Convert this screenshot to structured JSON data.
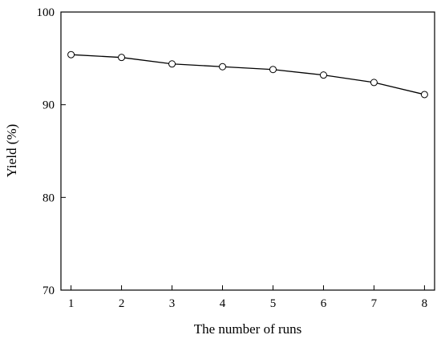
{
  "chart_data": {
    "type": "line",
    "title": "",
    "xlabel": "The number of runs",
    "ylabel": "Yield (%)",
    "xlim": [
      0.8,
      8.2
    ],
    "ylim": [
      70,
      100
    ],
    "x_ticks": [
      1,
      2,
      3,
      4,
      5,
      6,
      7,
      8
    ],
    "y_ticks": [
      70,
      80,
      90,
      100
    ],
    "grid": false,
    "legend": "none",
    "series": [
      {
        "x": [
          1,
          2,
          3,
          4,
          5,
          6,
          7,
          8
        ],
        "values": [
          95.4,
          95.1,
          94.4,
          94.1,
          93.8,
          93.2,
          92.4,
          91.1
        ],
        "marker": "open-circle",
        "color": "#000000"
      }
    ]
  }
}
